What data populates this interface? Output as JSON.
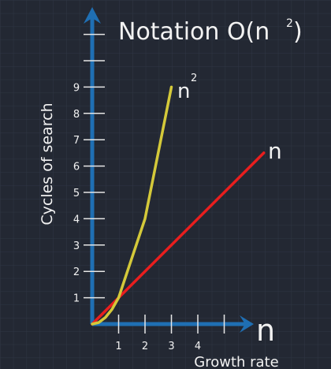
{
  "chart_data": {
    "type": "line",
    "title": "Notation O(n",
    "title_sup": "2",
    "title_end": ")",
    "xlabel": "Growth rate",
    "ylabel": "Cycles of search",
    "x_axis_symbol": "n",
    "x_ticks": [
      "1",
      "2",
      "3",
      "4"
    ],
    "y_ticks": [
      "1",
      "2",
      "3",
      "4",
      "5",
      "6",
      "7",
      "8",
      "9"
    ],
    "xlim": [
      0,
      6.4
    ],
    "ylim": [
      0,
      11.5
    ],
    "grid": true,
    "series": [
      {
        "name": "n",
        "name_sup": "2",
        "color": "#d4c93a",
        "x": [
          0,
          0.25,
          0.5,
          0.75,
          1,
          2,
          3
        ],
        "y": [
          0,
          0.06,
          0.25,
          0.56,
          1,
          4,
          9
        ]
      },
      {
        "name": "n",
        "name_sup": "",
        "color": "#e81e1e",
        "x": [
          0,
          6.5
        ],
        "y": [
          0,
          6.5
        ]
      }
    ],
    "axis_color": "#1f6fb3"
  }
}
